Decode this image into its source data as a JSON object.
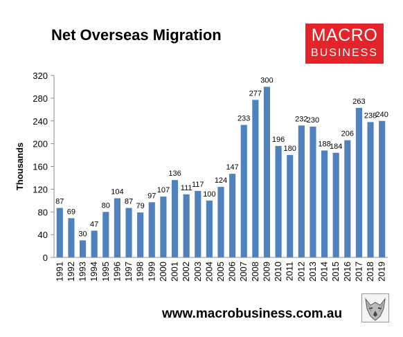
{
  "title": "Net Overseas Migration",
  "logo": {
    "line1": "MACRO",
    "line2": "BUSINESS",
    "color": "#e3242b"
  },
  "footer": {
    "website": "www.macrobusiness.com.au"
  },
  "badge_icon": "wolf-icon",
  "chart_data": {
    "type": "bar",
    "title": "Net Overseas Migration",
    "xlabel": "",
    "ylabel": "Thousands",
    "ylim": [
      0,
      320
    ],
    "yticks": [
      0,
      40,
      80,
      120,
      160,
      200,
      240,
      280,
      320
    ],
    "grid": false,
    "legend": "none",
    "bar_color": "#4f81bd",
    "categories": [
      "1991",
      "1992",
      "1993",
      "1994",
      "1995",
      "1996",
      "1997",
      "1998",
      "1999",
      "2000",
      "2001",
      "2002",
      "2003",
      "2004",
      "2005",
      "2006",
      "2007",
      "2008",
      "2009",
      "2010",
      "2011",
      "2012",
      "2013",
      "2014",
      "2015",
      "2016",
      "2017",
      "2018",
      "2019"
    ],
    "values": [
      87,
      69,
      30,
      47,
      80,
      104,
      87,
      79,
      97,
      107,
      136,
      111,
      117,
      100,
      124,
      147,
      233,
      277,
      300,
      196,
      180,
      232,
      230,
      188,
      184,
      206,
      263,
      238,
      240
    ]
  }
}
